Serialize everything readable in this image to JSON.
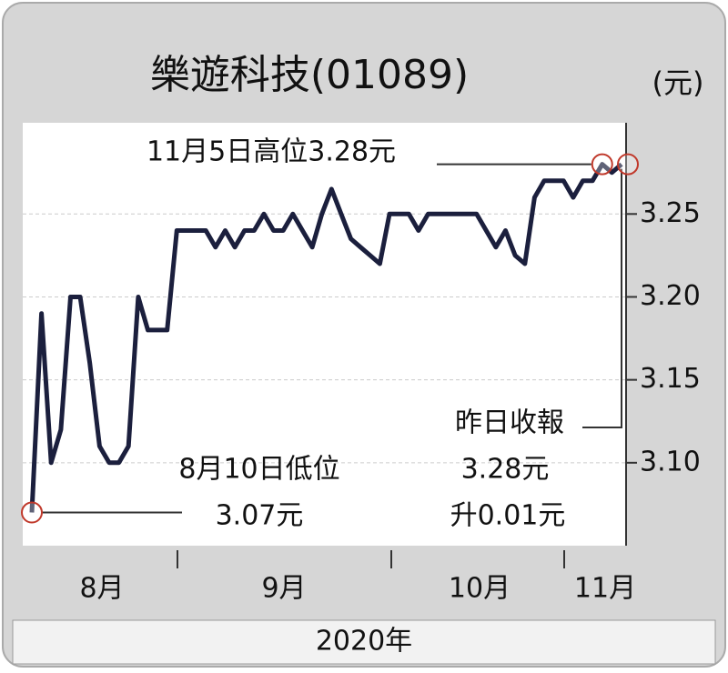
{
  "chart_data": {
    "type": "line",
    "title": "樂遊科技(01089)",
    "unit_label": "(元)",
    "months": [
      "8月",
      "9月",
      "10月",
      "11月"
    ],
    "year_label": "2020年",
    "series": [
      {
        "color": "#1b1f3d",
        "values": [
          3.07,
          3.19,
          3.1,
          3.12,
          3.2,
          3.2,
          3.16,
          3.11,
          3.1,
          3.1,
          3.11,
          3.2,
          3.18,
          3.18,
          3.18,
          3.24,
          3.24,
          3.24,
          3.24,
          3.23,
          3.24,
          3.23,
          3.24,
          3.24,
          3.25,
          3.24,
          3.24,
          3.25,
          3.24,
          3.23,
          3.25,
          3.265,
          3.25,
          3.235,
          3.23,
          3.225,
          3.22,
          3.25,
          3.25,
          3.25,
          3.24,
          3.25,
          3.25,
          3.25,
          3.25,
          3.25,
          3.25,
          3.24,
          3.23,
          3.24,
          3.225,
          3.22,
          3.26,
          3.27,
          3.27,
          3.27,
          3.26,
          3.27,
          3.27,
          3.28,
          3.275,
          3.28
        ]
      }
    ],
    "ylim": [
      3.05,
      3.305
    ],
    "yticks": [
      {
        "value": 3.1,
        "label": "3.10"
      },
      3.15,
      {
        "value": 3.2,
        "label": "3.20"
      },
      3.25
    ],
    "annotations": {
      "high": "11月5日高位3.28元",
      "low_date": "8月10日低位",
      "low_value": "3.07元",
      "close_title": "昨日收報",
      "close_value": "3.28元",
      "change": "升0.01元"
    }
  }
}
